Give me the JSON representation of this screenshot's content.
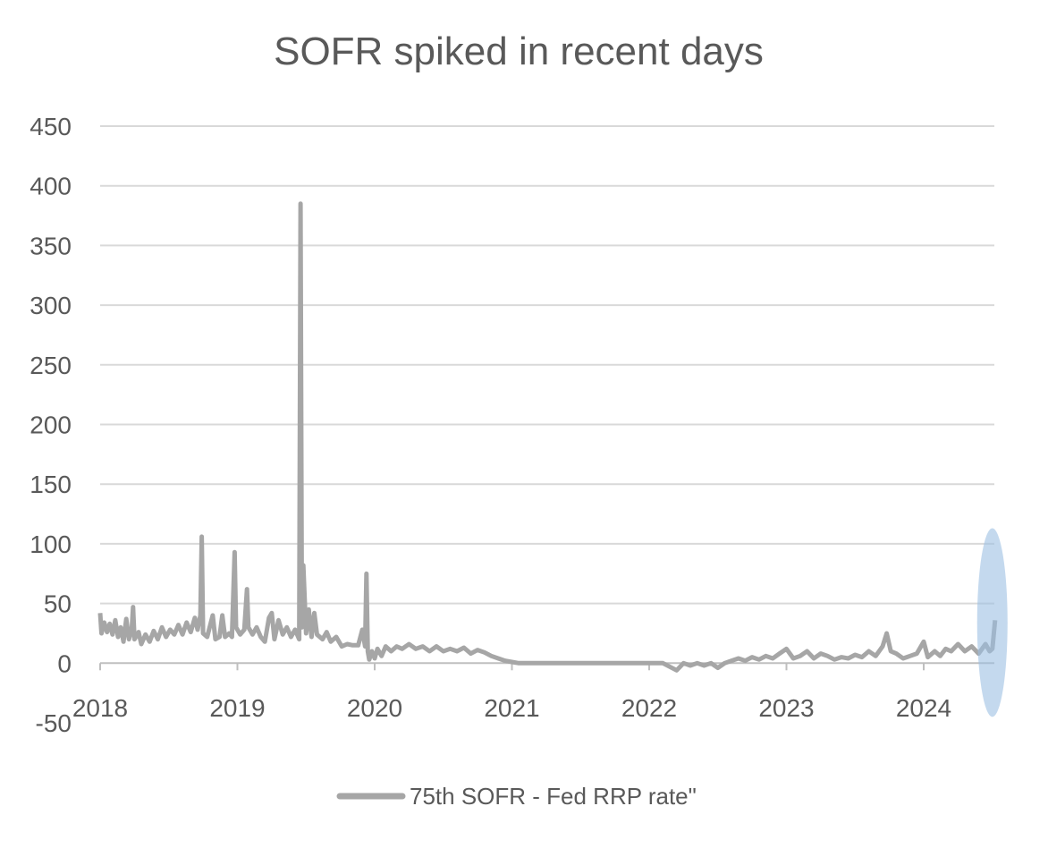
{
  "chart_data": {
    "type": "line",
    "title": "SOFR spiked in recent days",
    "xlabel": "",
    "ylabel": "",
    "x_ticks": [
      "2018",
      "2019",
      "2020",
      "2021",
      "2022",
      "2023",
      "2024"
    ],
    "xlim": [
      2018.0,
      2024.55
    ],
    "ylim": [
      -50,
      450
    ],
    "y_ticks": [
      -50,
      0,
      50,
      100,
      150,
      200,
      250,
      300,
      350,
      400,
      450
    ],
    "grid": true,
    "legend_position": "bottom",
    "highlight": {
      "shape": "ellipse",
      "x_center": 2024.5,
      "y_range": [
        -45,
        113
      ],
      "color": "#9dbfe3"
    },
    "series": [
      {
        "name": "75th SOFR - Fed RRP rate\"",
        "color": "#a6a6a6",
        "points": [
          [
            2018.0,
            42
          ],
          [
            2018.01,
            25
          ],
          [
            2018.03,
            34
          ],
          [
            2018.05,
            26
          ],
          [
            2018.07,
            33
          ],
          [
            2018.09,
            24
          ],
          [
            2018.11,
            36
          ],
          [
            2018.13,
            22
          ],
          [
            2018.15,
            30
          ],
          [
            2018.17,
            18
          ],
          [
            2018.19,
            37
          ],
          [
            2018.21,
            20
          ],
          [
            2018.23,
            28
          ],
          [
            2018.24,
            47
          ],
          [
            2018.25,
            20
          ],
          [
            2018.28,
            26
          ],
          [
            2018.3,
            16
          ],
          [
            2018.33,
            24
          ],
          [
            2018.36,
            18
          ],
          [
            2018.39,
            27
          ],
          [
            2018.42,
            20
          ],
          [
            2018.45,
            30
          ],
          [
            2018.48,
            22
          ],
          [
            2018.51,
            28
          ],
          [
            2018.54,
            24
          ],
          [
            2018.57,
            32
          ],
          [
            2018.6,
            24
          ],
          [
            2018.63,
            34
          ],
          [
            2018.66,
            26
          ],
          [
            2018.69,
            38
          ],
          [
            2018.71,
            28
          ],
          [
            2018.73,
            40
          ],
          [
            2018.74,
            106
          ],
          [
            2018.75,
            25
          ],
          [
            2018.78,
            22
          ],
          [
            2018.82,
            40
          ],
          [
            2018.84,
            20
          ],
          [
            2018.87,
            22
          ],
          [
            2018.89,
            40
          ],
          [
            2018.91,
            22
          ],
          [
            2018.94,
            25
          ],
          [
            2018.96,
            22
          ],
          [
            2018.98,
            93
          ],
          [
            2018.99,
            30
          ],
          [
            2019.02,
            24
          ],
          [
            2019.05,
            28
          ],
          [
            2019.07,
            62
          ],
          [
            2019.08,
            30
          ],
          [
            2019.11,
            24
          ],
          [
            2019.14,
            30
          ],
          [
            2019.17,
            22
          ],
          [
            2019.2,
            18
          ],
          [
            2019.23,
            38
          ],
          [
            2019.25,
            42
          ],
          [
            2019.27,
            20
          ],
          [
            2019.3,
            36
          ],
          [
            2019.33,
            24
          ],
          [
            2019.36,
            30
          ],
          [
            2019.39,
            22
          ],
          [
            2019.42,
            28
          ],
          [
            2019.45,
            20
          ],
          [
            2019.46,
            385
          ],
          [
            2019.47,
            30
          ],
          [
            2019.48,
            82
          ],
          [
            2019.5,
            25
          ],
          [
            2019.52,
            45
          ],
          [
            2019.54,
            22
          ],
          [
            2019.56,
            42
          ],
          [
            2019.58,
            24
          ],
          [
            2019.62,
            20
          ],
          [
            2019.65,
            26
          ],
          [
            2019.68,
            18
          ],
          [
            2019.72,
            22
          ],
          [
            2019.76,
            14
          ],
          [
            2019.8,
            16
          ],
          [
            2019.84,
            15
          ],
          [
            2019.88,
            15
          ],
          [
            2019.91,
            28
          ],
          [
            2019.93,
            14
          ],
          [
            2019.94,
            75
          ],
          [
            2019.95,
            10
          ],
          [
            2019.96,
            3
          ],
          [
            2019.98,
            10
          ],
          [
            2020.0,
            4
          ],
          [
            2020.02,
            12
          ],
          [
            2020.05,
            6
          ],
          [
            2020.08,
            14
          ],
          [
            2020.12,
            10
          ],
          [
            2020.16,
            14
          ],
          [
            2020.2,
            12
          ],
          [
            2020.25,
            16
          ],
          [
            2020.3,
            12
          ],
          [
            2020.35,
            14
          ],
          [
            2020.4,
            10
          ],
          [
            2020.45,
            14
          ],
          [
            2020.5,
            10
          ],
          [
            2020.55,
            12
          ],
          [
            2020.6,
            10
          ],
          [
            2020.65,
            13
          ],
          [
            2020.7,
            8
          ],
          [
            2020.75,
            11
          ],
          [
            2020.8,
            9
          ],
          [
            2020.85,
            6
          ],
          [
            2020.9,
            4
          ],
          [
            2020.95,
            2
          ],
          [
            2021.0,
            1
          ],
          [
            2021.05,
            0
          ],
          [
            2021.2,
            0
          ],
          [
            2021.4,
            0
          ],
          [
            2021.6,
            0
          ],
          [
            2021.8,
            0
          ],
          [
            2022.0,
            0
          ],
          [
            2022.1,
            0
          ],
          [
            2022.2,
            -6
          ],
          [
            2022.25,
            0
          ],
          [
            2022.3,
            -2
          ],
          [
            2022.35,
            0
          ],
          [
            2022.4,
            -2
          ],
          [
            2022.45,
            0
          ],
          [
            2022.5,
            -4
          ],
          [
            2022.55,
            0
          ],
          [
            2022.6,
            2
          ],
          [
            2022.65,
            4
          ],
          [
            2022.7,
            2
          ],
          [
            2022.75,
            5
          ],
          [
            2022.8,
            3
          ],
          [
            2022.85,
            6
          ],
          [
            2022.9,
            4
          ],
          [
            2022.95,
            8
          ],
          [
            2023.0,
            12
          ],
          [
            2023.05,
            4
          ],
          [
            2023.1,
            6
          ],
          [
            2023.15,
            10
          ],
          [
            2023.2,
            4
          ],
          [
            2023.25,
            8
          ],
          [
            2023.3,
            6
          ],
          [
            2023.35,
            3
          ],
          [
            2023.4,
            5
          ],
          [
            2023.45,
            4
          ],
          [
            2023.5,
            7
          ],
          [
            2023.55,
            5
          ],
          [
            2023.6,
            10
          ],
          [
            2023.65,
            6
          ],
          [
            2023.7,
            14
          ],
          [
            2023.73,
            25
          ],
          [
            2023.76,
            10
          ],
          [
            2023.8,
            8
          ],
          [
            2023.85,
            4
          ],
          [
            2023.9,
            6
          ],
          [
            2023.95,
            8
          ],
          [
            2024.0,
            18
          ],
          [
            2024.03,
            5
          ],
          [
            2024.08,
            10
          ],
          [
            2024.12,
            6
          ],
          [
            2024.16,
            12
          ],
          [
            2024.2,
            10
          ],
          [
            2024.25,
            16
          ],
          [
            2024.3,
            10
          ],
          [
            2024.35,
            14
          ],
          [
            2024.4,
            8
          ],
          [
            2024.45,
            16
          ],
          [
            2024.48,
            10
          ],
          [
            2024.5,
            12
          ],
          [
            2024.52,
            36
          ]
        ]
      }
    ]
  }
}
